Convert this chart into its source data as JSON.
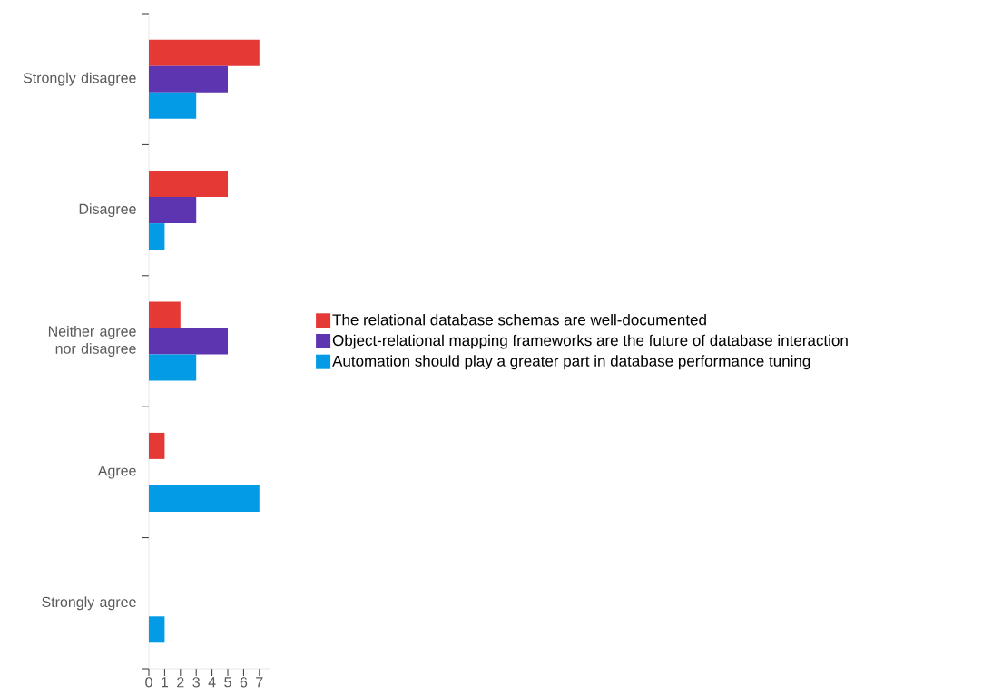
{
  "chart_data": {
    "type": "bar",
    "orientation": "horizontal",
    "categories": [
      "Strongly disagree",
      "Disagree",
      "Neither agree nor disagree",
      "Agree",
      "Strongly agree"
    ],
    "series": [
      {
        "name": "The relational database schemas are well-documented",
        "color": "#e53935",
        "values": [
          7,
          5,
          2,
          1,
          0
        ]
      },
      {
        "name": "Object-relational mapping frameworks are the future of database interaction",
        "color": "#5e35b1",
        "values": [
          5,
          3,
          5,
          0,
          0
        ]
      },
      {
        "name": "Automation should play a greater part in database performance tuning",
        "color": "#039be5",
        "values": [
          3,
          1,
          3,
          7,
          1
        ]
      }
    ],
    "xlim": [
      0,
      7.7
    ],
    "xticks": [
      0,
      1,
      2,
      3,
      4,
      5,
      6,
      7
    ],
    "legend": "right"
  }
}
